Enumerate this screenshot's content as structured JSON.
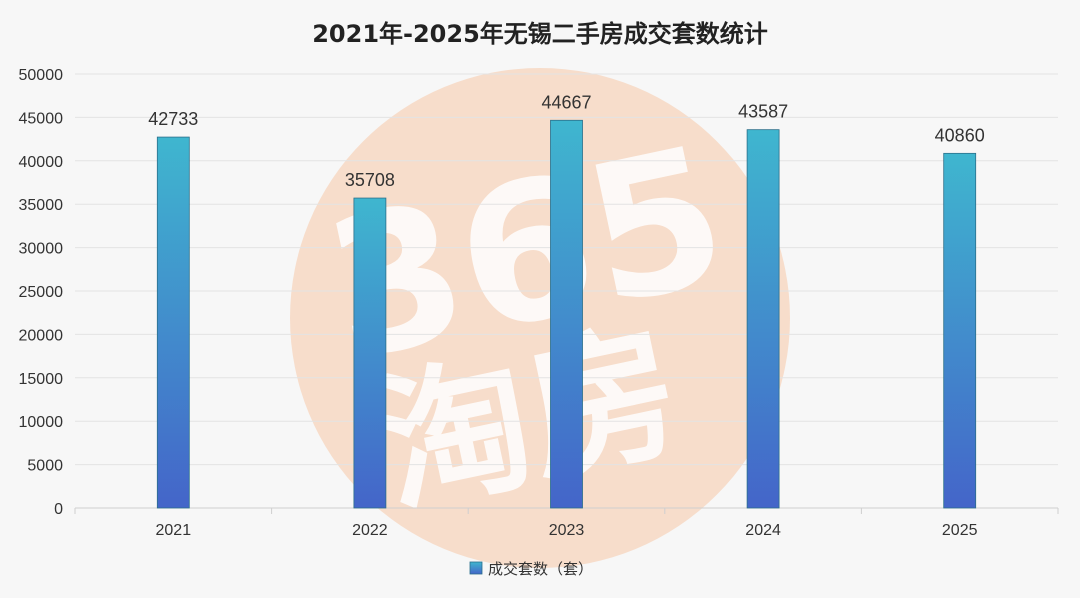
{
  "colors": {
    "bar_top": "#3fb6cf",
    "bar_bottom": "#4465c9",
    "bar_stroke": "#2a6f8a",
    "watermark": "#f7c9a8"
  },
  "watermark": {
    "line1": "365",
    "line2": "淘房"
  },
  "chart_data": {
    "type": "bar",
    "title": "2021年-2025年无锡二手房成交套数统计",
    "xlabel": "",
    "ylabel": "",
    "categories": [
      "2021",
      "2022",
      "2023",
      "2024",
      "2025"
    ],
    "series": [
      {
        "name": "成交套数（套）",
        "values": [
          42733,
          35708,
          44667,
          43587,
          40860
        ]
      }
    ],
    "data_labels": [
      "42733",
      "35708",
      "44667",
      "43587",
      "40860"
    ],
    "ylim": [
      0,
      50000
    ],
    "yticks": [
      0,
      5000,
      10000,
      15000,
      20000,
      25000,
      30000,
      35000,
      40000,
      45000,
      50000
    ],
    "grid": true,
    "legend_position": "bottom"
  }
}
